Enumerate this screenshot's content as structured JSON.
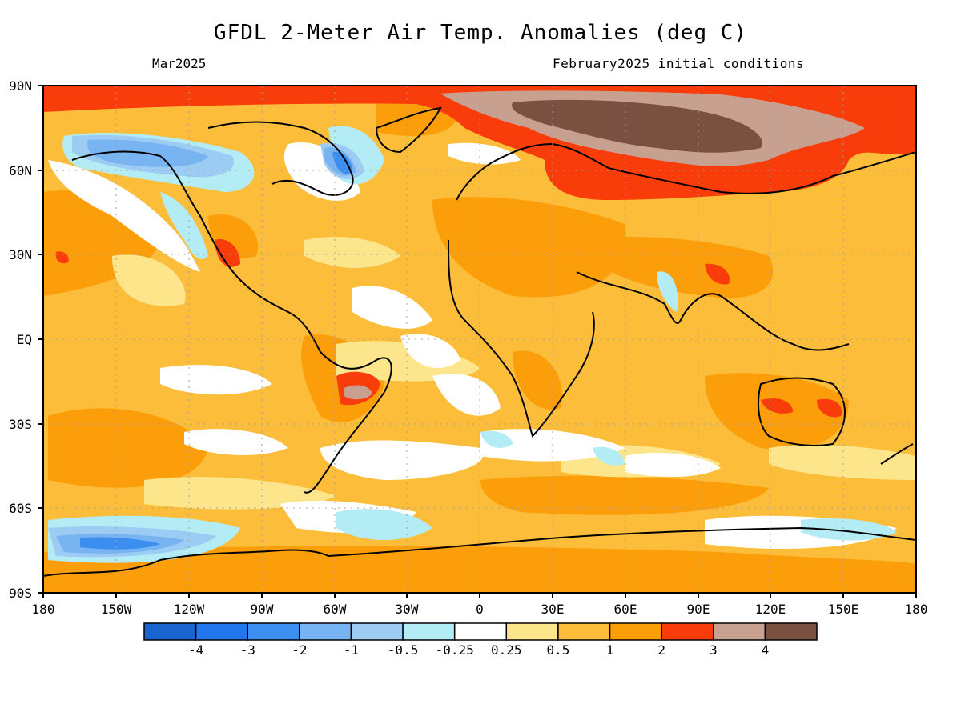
{
  "header": {
    "title": "GFDL 2-Meter Air Temp. Anomalies (deg C)",
    "left_subtitle": "Mar2025",
    "right_subtitle": "February2025 initial conditions"
  },
  "axes": {
    "y_ticks": [
      "90N",
      "60N",
      "30N",
      "EQ",
      "30S",
      "60S",
      "90S"
    ],
    "x_ticks": [
      "180",
      "150W",
      "120W",
      "90W",
      "60W",
      "30W",
      "0",
      "30E",
      "60E",
      "90E",
      "120E",
      "150E",
      "180"
    ]
  },
  "colorbar": {
    "colors": [
      "#1a64d0",
      "#2276ee",
      "#3c8ff0",
      "#78b4f2",
      "#9ccbf4",
      "#b4ecf6",
      "#ffffff",
      "#fde58c",
      "#fbbd3a",
      "#fb9e0a",
      "#f83c0a",
      "#c8a090",
      "#7a5040"
    ],
    "labels": [
      "-4",
      "-3",
      "-2",
      "-1",
      "-0.5",
      "-0.25",
      "0.25",
      "0.5",
      "1",
      "2",
      "3",
      "4"
    ]
  },
  "map_colors": {
    "ocean_base": "#fbbd3a",
    "coast": "#000000",
    "grid": "#a0a0a0"
  }
}
